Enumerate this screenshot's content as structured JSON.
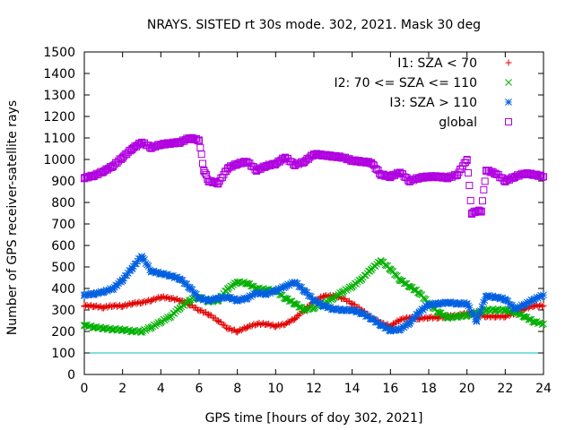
{
  "chart_data": {
    "type": "scatter",
    "title": "NRAYS. SISTED rt 30s mode. 302, 2021. Mask 30 deg",
    "xlabel": "GPS time [hours of doy 302, 2021]",
    "ylabel": "Number of GPS receiver-satellite rays",
    "xlim": [
      0,
      24
    ],
    "ylim": [
      0,
      1500
    ],
    "xticks": [
      0,
      2,
      4,
      6,
      8,
      10,
      12,
      14,
      16,
      18,
      20,
      22,
      24
    ],
    "yticks": [
      0,
      100,
      200,
      300,
      400,
      500,
      600,
      700,
      800,
      900,
      1000,
      1100,
      1200,
      1300,
      1400,
      1500
    ],
    "grid": false,
    "legend_position": "top-right",
    "reference_line": {
      "y": 100,
      "color": "#00c0c0"
    },
    "series": [
      {
        "name": "I1: SZA < 70",
        "marker": "+",
        "color": "#e00000",
        "points": [
          [
            0,
            320
          ],
          [
            0.5,
            318
          ],
          [
            1,
            312
          ],
          [
            1.5,
            320
          ],
          [
            2,
            318
          ],
          [
            2.5,
            330
          ],
          [
            3,
            335
          ],
          [
            3.5,
            345
          ],
          [
            4,
            360
          ],
          [
            4.5,
            355
          ],
          [
            5,
            345
          ],
          [
            5.5,
            325
          ],
          [
            6,
            300
          ],
          [
            6.5,
            280
          ],
          [
            7,
            250
          ],
          [
            7.5,
            215
          ],
          [
            8,
            200
          ],
          [
            8.5,
            220
          ],
          [
            9,
            235
          ],
          [
            9.5,
            235
          ],
          [
            10,
            225
          ],
          [
            10.5,
            235
          ],
          [
            11,
            260
          ],
          [
            11.5,
            300
          ],
          [
            12,
            340
          ],
          [
            12.5,
            365
          ],
          [
            13,
            365
          ],
          [
            13.5,
            355
          ],
          [
            14,
            330
          ],
          [
            14.5,
            300
          ],
          [
            15,
            265
          ],
          [
            15.5,
            240
          ],
          [
            16,
            225
          ],
          [
            16.5,
            255
          ],
          [
            17,
            265
          ],
          [
            17.5,
            260
          ],
          [
            18,
            265
          ],
          [
            18.5,
            265
          ],
          [
            19,
            270
          ],
          [
            19.5,
            275
          ],
          [
            20,
            285
          ],
          [
            20.5,
            280
          ],
          [
            21,
            270
          ],
          [
            21.5,
            270
          ],
          [
            22,
            270
          ],
          [
            22.5,
            285
          ],
          [
            23,
            305
          ],
          [
            23.5,
            320
          ],
          [
            24,
            320
          ]
        ]
      },
      {
        "name": "I2: 70 <= SZA <= 110",
        "marker": "x",
        "color": "#00b000",
        "points": [
          [
            0,
            230
          ],
          [
            0.5,
            220
          ],
          [
            1,
            215
          ],
          [
            1.5,
            210
          ],
          [
            2,
            208
          ],
          [
            2.5,
            202
          ],
          [
            3,
            200
          ],
          [
            3.5,
            220
          ],
          [
            4,
            245
          ],
          [
            4.5,
            270
          ],
          [
            5,
            310
          ],
          [
            5.5,
            345
          ],
          [
            6,
            360
          ],
          [
            6.5,
            340
          ],
          [
            7,
            345
          ],
          [
            7.5,
            400
          ],
          [
            8,
            430
          ],
          [
            8.5,
            425
          ],
          [
            9,
            400
          ],
          [
            9.5,
            395
          ],
          [
            10,
            390
          ],
          [
            10.5,
            355
          ],
          [
            11,
            330
          ],
          [
            11.5,
            300
          ],
          [
            12,
            310
          ],
          [
            12.5,
            330
          ],
          [
            13,
            355
          ],
          [
            13.5,
            385
          ],
          [
            14,
            410
          ],
          [
            14.5,
            445
          ],
          [
            15,
            490
          ],
          [
            15.5,
            530
          ],
          [
            16,
            490
          ],
          [
            16.5,
            440
          ],
          [
            17,
            410
          ],
          [
            17.5,
            380
          ],
          [
            18,
            330
          ],
          [
            18.5,
            290
          ],
          [
            19,
            265
          ],
          [
            19.5,
            270
          ],
          [
            20,
            275
          ],
          [
            20.5,
            285
          ],
          [
            21,
            300
          ],
          [
            21.5,
            300
          ],
          [
            22,
            300
          ],
          [
            22.5,
            290
          ],
          [
            23,
            270
          ],
          [
            23.5,
            245
          ],
          [
            24,
            235
          ]
        ]
      },
      {
        "name": "I3: SZA > 110",
        "marker": "*",
        "color": "#0060e0",
        "points": [
          [
            0,
            370
          ],
          [
            0.5,
            375
          ],
          [
            1,
            385
          ],
          [
            1.5,
            400
          ],
          [
            2,
            440
          ],
          [
            2.5,
            495
          ],
          [
            3,
            550
          ],
          [
            3.5,
            480
          ],
          [
            4,
            470
          ],
          [
            4.5,
            460
          ],
          [
            5,
            445
          ],
          [
            5.5,
            405
          ],
          [
            6,
            355
          ],
          [
            6.5,
            345
          ],
          [
            7,
            355
          ],
          [
            7.5,
            360
          ],
          [
            8,
            345
          ],
          [
            8.5,
            355
          ],
          [
            9,
            380
          ],
          [
            9.5,
            375
          ],
          [
            10,
            390
          ],
          [
            10.5,
            410
          ],
          [
            11,
            430
          ],
          [
            11.5,
            390
          ],
          [
            12,
            345
          ],
          [
            12.5,
            320
          ],
          [
            13,
            305
          ],
          [
            13.5,
            300
          ],
          [
            14,
            300
          ],
          [
            14.5,
            285
          ],
          [
            15,
            260
          ],
          [
            15.5,
            230
          ],
          [
            16,
            205
          ],
          [
            16.5,
            210
          ],
          [
            17,
            240
          ],
          [
            17.5,
            290
          ],
          [
            18,
            325
          ],
          [
            18.5,
            330
          ],
          [
            19,
            335
          ],
          [
            19.5,
            330
          ],
          [
            20,
            330
          ],
          [
            20.5,
            250
          ],
          [
            21,
            365
          ],
          [
            21.5,
            360
          ],
          [
            22,
            350
          ],
          [
            22.5,
            305
          ],
          [
            23,
            325
          ],
          [
            23.5,
            350
          ],
          [
            24,
            370
          ]
        ]
      },
      {
        "name": "global",
        "marker": "square",
        "color": "#b000e0",
        "points": [
          [
            0,
            915
          ],
          [
            0.5,
            925
          ],
          [
            1,
            945
          ],
          [
            1.5,
            970
          ],
          [
            2,
            1010
          ],
          [
            2.5,
            1050
          ],
          [
            3,
            1080
          ],
          [
            3.5,
            1055
          ],
          [
            4,
            1070
          ],
          [
            4.5,
            1075
          ],
          [
            5,
            1080
          ],
          [
            5.5,
            1100
          ],
          [
            6,
            1090
          ],
          [
            6.25,
            950
          ],
          [
            6.5,
            900
          ],
          [
            7,
            890
          ],
          [
            7.5,
            960
          ],
          [
            8,
            980
          ],
          [
            8.5,
            990
          ],
          [
            9,
            950
          ],
          [
            9.5,
            970
          ],
          [
            10,
            980
          ],
          [
            10.5,
            1010
          ],
          [
            11,
            975
          ],
          [
            11.5,
            990
          ],
          [
            12,
            1025
          ],
          [
            12.5,
            1020
          ],
          [
            13,
            1015
          ],
          [
            13.5,
            1010
          ],
          [
            14,
            995
          ],
          [
            14.5,
            990
          ],
          [
            15,
            985
          ],
          [
            15.5,
            930
          ],
          [
            16,
            920
          ],
          [
            16.5,
            940
          ],
          [
            17,
            900
          ],
          [
            17.5,
            915
          ],
          [
            18,
            920
          ],
          [
            18.5,
            920
          ],
          [
            19,
            915
          ],
          [
            19.5,
            930
          ],
          [
            20,
            1000
          ],
          [
            20.25,
            750
          ],
          [
            20.5,
            760
          ],
          [
            20.75,
            760
          ],
          [
            21,
            950
          ],
          [
            21.5,
            935
          ],
          [
            22,
            900
          ],
          [
            22.5,
            920
          ],
          [
            23,
            935
          ],
          [
            23.5,
            930
          ],
          [
            24,
            920
          ]
        ]
      }
    ]
  }
}
